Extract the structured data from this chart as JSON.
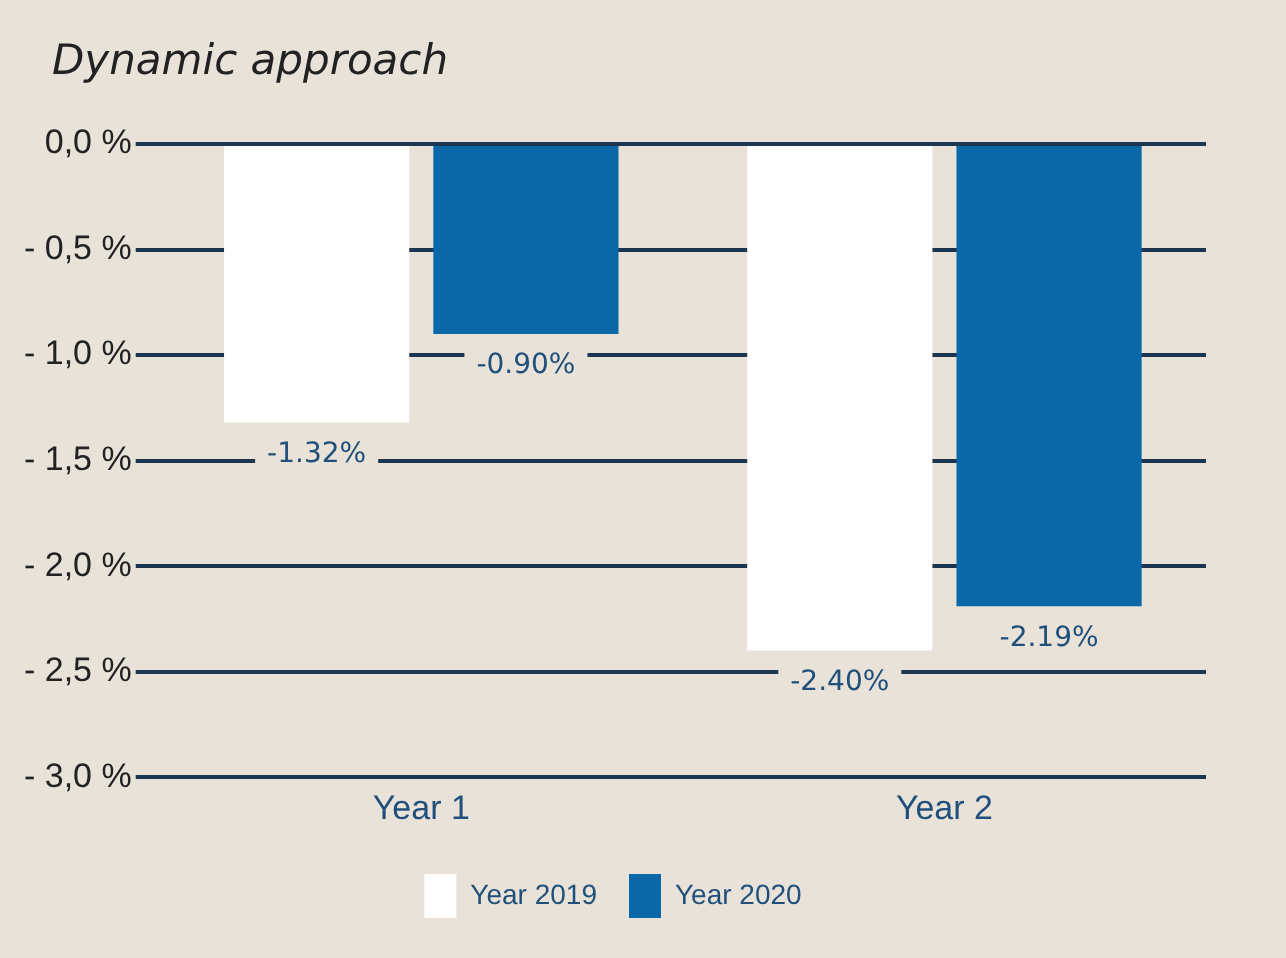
{
  "chart_data": {
    "type": "bar",
    "title": "Dynamic approach",
    "categories": [
      "Year 1",
      "Year 2"
    ],
    "series": [
      {
        "name": "Year 2019",
        "color": "#ffffff",
        "values": [
          -1.32,
          -2.4
        ],
        "value_labels": [
          "-1.32%",
          "-2.40%"
        ]
      },
      {
        "name": "Year 2020",
        "color": "#0a68a8",
        "values": [
          -0.9,
          -2.19
        ],
        "value_labels": [
          "-0.90%",
          "-2.19%"
        ]
      }
    ],
    "ylim": [
      -3,
      0
    ],
    "yticks": [
      {
        "value": 0,
        "label": "0,0 %"
      },
      {
        "value": -0.5,
        "label": "- 0,5 %"
      },
      {
        "value": -1,
        "label": "- 1,0 %"
      },
      {
        "value": -1.5,
        "label": "- 1,5 %"
      },
      {
        "value": -2,
        "label": "- 2,0 %"
      },
      {
        "value": -2.5,
        "label": "- 2,5 %"
      },
      {
        "value": -3,
        "label": "- 3,0 %"
      }
    ],
    "grid": "y",
    "legend": "bottom"
  }
}
